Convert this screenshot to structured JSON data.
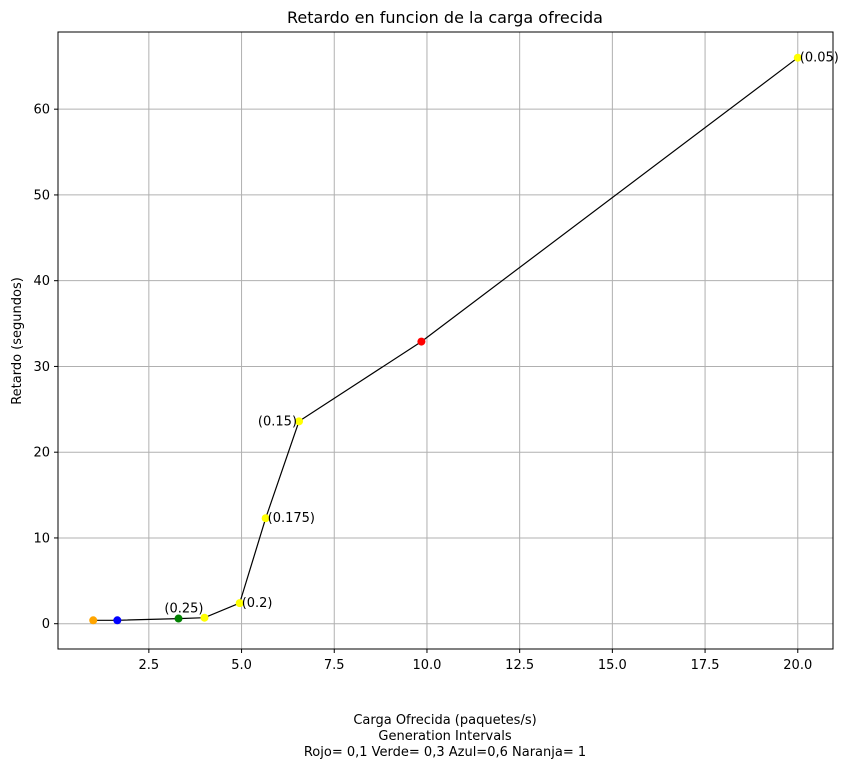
{
  "chart_data": {
    "type": "line",
    "title": "Retardo en funcion de la carga ofrecida",
    "xlabel": "Carga Ofrecida (paquetes/s)",
    "xlabel_lines": [
      "Carga Ofrecida (paquetes/s)",
      "Generation Intervals",
      "Rojo= 0,1  Verde= 0,3  Azul=0,6  Naranja= 1"
    ],
    "ylabel": "Retardo (segundos)",
    "xlim": [
      0.05,
      20.95
    ],
    "ylim": [
      -2.95,
      69.0
    ],
    "xticks": [
      2.5,
      5.0,
      7.5,
      10.0,
      12.5,
      15.0,
      17.5,
      20.0
    ],
    "xtick_labels": [
      "2.5",
      "5.0",
      "7.5",
      "10.0",
      "12.5",
      "15.0",
      "17.5",
      "20.0"
    ],
    "yticks": [
      0,
      10,
      20,
      30,
      40,
      50,
      60
    ],
    "ytick_labels": [
      "0",
      "10",
      "20",
      "30",
      "40",
      "50",
      "60"
    ],
    "grid": true,
    "line_color": "#000000",
    "series": [
      {
        "x": [
          1.0,
          1.65,
          3.3,
          4.0,
          4.95,
          5.65,
          6.55,
          9.85,
          20.0
        ],
        "y": [
          0.4,
          0.4,
          0.6,
          0.7,
          2.4,
          12.3,
          23.6,
          32.9,
          66.0
        ],
        "colors": [
          "#ffa500",
          "#0000ff",
          "#008000",
          "#ffff00",
          "#ffff00",
          "#ffff00",
          "#ffff00",
          "#ff0000",
          "#ffff00"
        ]
      }
    ],
    "annotations": [
      {
        "text": "(0.25)",
        "x": 4.0,
        "y": 0.7,
        "place": "above-left"
      },
      {
        "text": "(0.2)",
        "x": 4.95,
        "y": 2.4,
        "place": "right"
      },
      {
        "text": "(0.175)",
        "x": 5.65,
        "y": 12.3,
        "place": "right"
      },
      {
        "text": "(0.15)",
        "x": 6.55,
        "y": 23.6,
        "place": "left"
      },
      {
        "text": "(0.05)",
        "x": 20.0,
        "y": 66.0,
        "place": "right"
      }
    ]
  }
}
